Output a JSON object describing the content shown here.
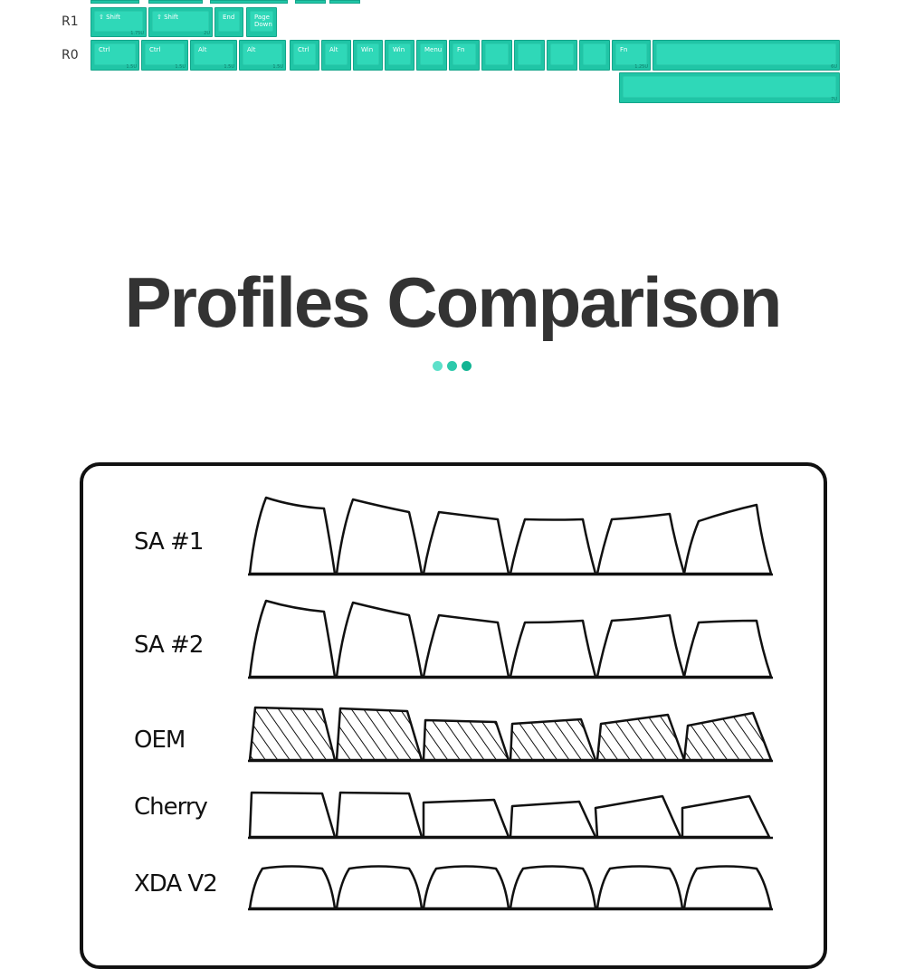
{
  "keyboard": {
    "rows": [
      {
        "label": "R1"
      },
      {
        "label": "R0"
      }
    ],
    "keys": [
      {
        "label": "⇧ Shift",
        "size": "1.75U"
      },
      {
        "label": "⇧ Shift",
        "size": "2U"
      },
      {
        "label": "End",
        "size": ""
      },
      {
        "label": "Page\nDown",
        "size": ""
      },
      {
        "label": "Ctrl",
        "size": "1.5U"
      },
      {
        "label": "Ctrl",
        "size": "1.5U"
      },
      {
        "label": "Alt",
        "size": "1.5U"
      },
      {
        "label": "Alt",
        "size": "1.5U"
      },
      {
        "label": "Ctrl",
        "size": ""
      },
      {
        "label": "Alt",
        "size": ""
      },
      {
        "label": "Win",
        "size": ""
      },
      {
        "label": "Win",
        "size": ""
      },
      {
        "label": "Menu",
        "size": ""
      },
      {
        "label": "Fn",
        "size": ""
      },
      {
        "label": "",
        "size": ""
      },
      {
        "label": "",
        "size": ""
      },
      {
        "label": "",
        "size": ""
      },
      {
        "label": "",
        "size": ""
      },
      {
        "label": "Fn",
        "size": "1.25U"
      },
      {
        "label": "",
        "size": "6U"
      },
      {
        "label": "",
        "size": "7U"
      }
    ]
  },
  "heading": {
    "title": "Profiles Comparison"
  },
  "dots": {
    "colors": [
      "#5de0ca",
      "#2cc9ab",
      "#12b493"
    ]
  },
  "profiles": [
    {
      "name": "SA #1"
    },
    {
      "name": "SA #2"
    },
    {
      "name": "OEM"
    },
    {
      "name": "Cherry"
    },
    {
      "name": "XDA V2"
    }
  ],
  "colors": {
    "accent": "#20c5a6",
    "title": "#333333"
  }
}
